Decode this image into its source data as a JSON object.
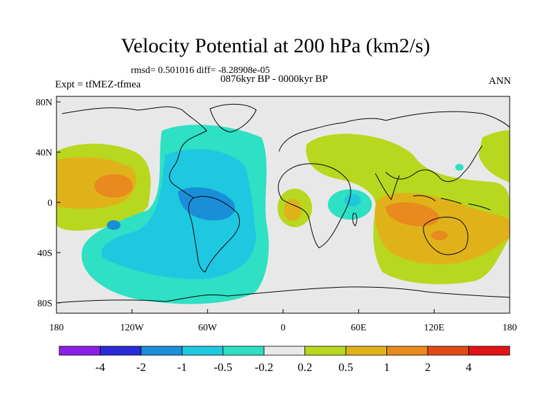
{
  "title": "Velocity Potential at 200 hPa (km2/s)",
  "stats_line": "rmsd= 0.501016  diff= -8.28908e-05",
  "left_label": "Expt = tfMEZ-tfmea",
  "center_label": "0876kyr BP - 0000kyr BP",
  "right_label": "ANN",
  "lat_ticks": [
    "80N",
    "40N",
    "0",
    "40S",
    "80S"
  ],
  "lon_ticks": [
    "180",
    "120W",
    "60W",
    "0",
    "60E",
    "120E",
    "180"
  ],
  "colorbar": {
    "levels": [
      "-4",
      "-2",
      "-1",
      "-0.5",
      "-0.2",
      "0.2",
      "0.5",
      "1",
      "2",
      "4"
    ],
    "colors": [
      "#8b1fe6",
      "#2a2ad6",
      "#1a8ed8",
      "#1ec8e0",
      "#2ee0c4",
      "#e8e8e8",
      "#b7d81e",
      "#e0b21a",
      "#e88a1e",
      "#e04a16",
      "#e01414"
    ]
  },
  "map_colors": {
    "ocean_neutral": "#e8e8e8",
    "neg_weak": "#2ee0c4",
    "neg_mid": "#1ec8e0",
    "neg_strong": "#1a8ed8",
    "pos_weak": "#b7d81e",
    "pos_mid": "#e0b21a",
    "pos_strong": "#e88a1e",
    "coast": "#000000"
  }
}
